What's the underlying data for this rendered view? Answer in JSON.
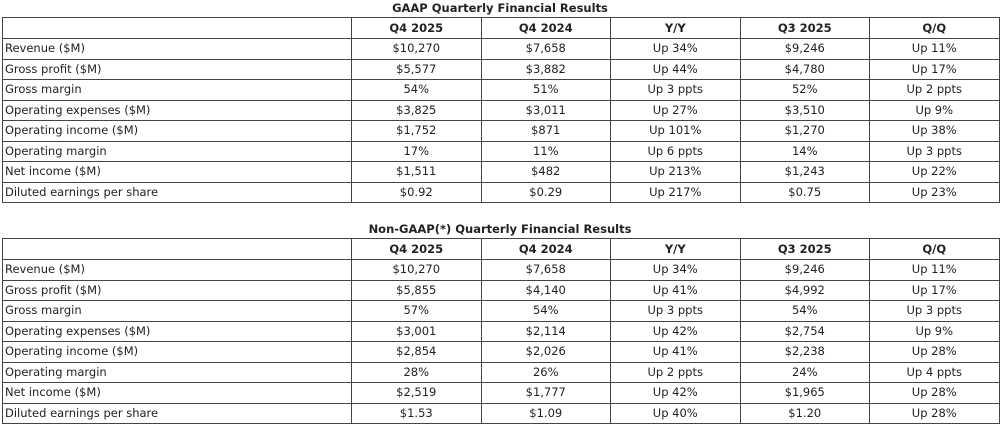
{
  "tables": [
    {
      "title": "GAAP Quarterly Financial Results",
      "headers": [
        "",
        "Q4 2025",
        "Q4 2024",
        "Y/Y",
        "Q3 2025",
        "Q/Q"
      ],
      "rows": [
        [
          "Revenue ($M)",
          "$10,270",
          "$7,658",
          "Up 34%",
          "$9,246",
          "Up 11%"
        ],
        [
          "Gross profit ($M)",
          "$5,577",
          "$3,882",
          "Up 44%",
          "$4,780",
          "Up 17%"
        ],
        [
          "Gross margin",
          "54%",
          "51%",
          "Up 3 ppts",
          "52%",
          "Up 2 ppts"
        ],
        [
          "Operating expenses ($M)",
          "$3,825",
          "$3,011",
          "Up 27%",
          "$3,510",
          "Up 9%"
        ],
        [
          "Operating income ($M)",
          "$1,752",
          "$871",
          "Up 101%",
          "$1,270",
          "Up 38%"
        ],
        [
          "Operating margin",
          "17%",
          "11%",
          "Up 6 ppts",
          "14%",
          "Up 3 ppts"
        ],
        [
          "Net income ($M)",
          "$1,511",
          "$482",
          "Up 213%",
          "$1,243",
          "Up 22%"
        ],
        [
          "Diluted earnings per share",
          "$0.92",
          "$0.29",
          "Up 217%",
          "$0.75",
          "Up 23%"
        ]
      ]
    },
    {
      "title": "Non-GAAP(*) Quarterly Financial Results",
      "headers": [
        "",
        "Q4 2025",
        "Q4 2024",
        "Y/Y",
        "Q3 2025",
        "Q/Q"
      ],
      "rows": [
        [
          "Revenue ($M)",
          "$10,270",
          "$7,658",
          "Up 34%",
          "$9,246",
          "Up 11%"
        ],
        [
          "Gross profit ($M)",
          "$5,855",
          "$4,140",
          "Up 41%",
          "$4,992",
          "Up 17%"
        ],
        [
          "Gross margin",
          "57%",
          "54%",
          "Up 3 ppts",
          "54%",
          "Up 3 ppts"
        ],
        [
          "Operating expenses ($M)",
          "$3,001",
          "$2,114",
          "Up 42%",
          "$2,754",
          "Up 9%"
        ],
        [
          "Operating income ($M)",
          "$2,854",
          "$2,026",
          "Up 41%",
          "$2,238",
          "Up 28%"
        ],
        [
          "Operating margin",
          "28%",
          "26%",
          "Up 2 ppts",
          "24%",
          "Up 4 ppts"
        ],
        [
          "Net income ($M)",
          "$2,519",
          "$1,777",
          "Up 42%",
          "$1,965",
          "Up 28%"
        ],
        [
          "Diluted earnings per share",
          "$1.53",
          "$1.09",
          "Up 40%",
          "$1.20",
          "Up 28%"
        ]
      ]
    }
  ]
}
